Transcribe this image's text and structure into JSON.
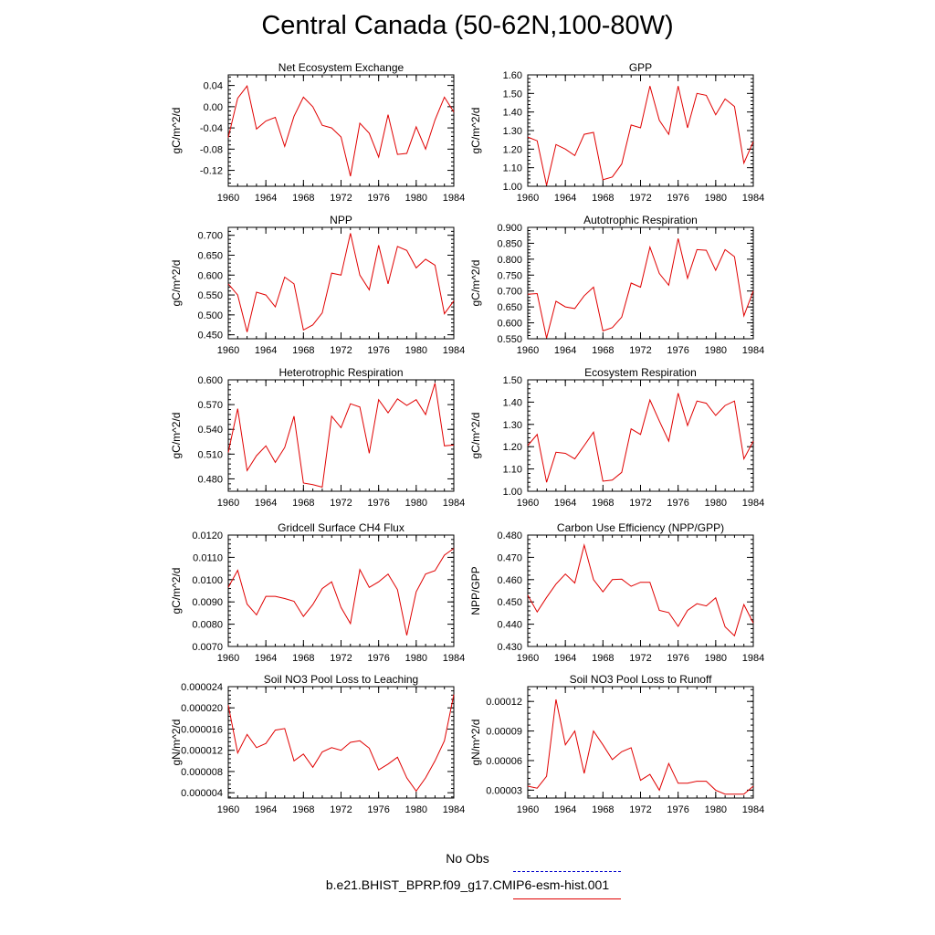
{
  "page": {
    "title": "Central Canada (50-62N,100-80W)"
  },
  "legend": {
    "obs_label": "No Obs",
    "obs_color": "#0000cc",
    "model_label": "b.e21.BHIST_BPRP.f09_g17.CMIP6-esm-hist.001",
    "model_color": "#e00000"
  },
  "chart_data": [
    {
      "type": "line",
      "title": "Net Ecosystem Exchange",
      "ylabel": "gC/m^2/d",
      "x": [
        1960,
        1961,
        1962,
        1963,
        1964,
        1965,
        1966,
        1967,
        1968,
        1969,
        1970,
        1971,
        1972,
        1973,
        1974,
        1975,
        1976,
        1977,
        1978,
        1979,
        1980,
        1981,
        1982,
        1983,
        1984
      ],
      "values": [
        -0.058,
        0.016,
        0.039,
        -0.042,
        -0.027,
        -0.02,
        -0.075,
        -0.018,
        0.018,
        0.0,
        -0.035,
        -0.04,
        -0.057,
        -0.131,
        -0.031,
        -0.05,
        -0.095,
        -0.015,
        -0.09,
        -0.088,
        -0.038,
        -0.08,
        -0.025,
        0.018,
        -0.01
      ],
      "ylim": [
        -0.15,
        0.06
      ],
      "yticks": [
        -0.12,
        -0.08,
        -0.04,
        0.0,
        0.04
      ],
      "ytick_labels": [
        "-0.12",
        "-0.08",
        "-0.04",
        "0.00",
        "0.04"
      ],
      "xticks": [
        "1960",
        "1964",
        "1968",
        "1972",
        "1976",
        "1980",
        "1984"
      ]
    },
    {
      "type": "line",
      "title": "GPP",
      "ylabel": "gC/m^2/d",
      "x": [
        1960,
        1961,
        1962,
        1963,
        1964,
        1965,
        1966,
        1967,
        1968,
        1969,
        1970,
        1971,
        1972,
        1973,
        1974,
        1975,
        1976,
        1977,
        1978,
        1979,
        1980,
        1981,
        1982,
        1983,
        1984
      ],
      "values": [
        1.265,
        1.245,
        1.005,
        1.225,
        1.2,
        1.165,
        1.28,
        1.29,
        1.035,
        1.05,
        1.12,
        1.33,
        1.315,
        1.54,
        1.355,
        1.28,
        1.54,
        1.315,
        1.5,
        1.49,
        1.385,
        1.47,
        1.43,
        1.125,
        1.24
      ],
      "ylim": [
        1.0,
        1.6
      ],
      "yticks": [
        1.0,
        1.1,
        1.2,
        1.3,
        1.4,
        1.5,
        1.6
      ],
      "ytick_labels": [
        "1.00",
        "1.10",
        "1.20",
        "1.30",
        "1.40",
        "1.50",
        "1.60"
      ],
      "xticks": [
        "1960",
        "1964",
        "1968",
        "1972",
        "1976",
        "1980",
        "1984"
      ]
    },
    {
      "type": "line",
      "title": "NPP",
      "ylabel": "gC/m^2/d",
      "x": [
        1960,
        1961,
        1962,
        1963,
        1964,
        1965,
        1966,
        1967,
        1968,
        1969,
        1970,
        1971,
        1972,
        1973,
        1974,
        1975,
        1976,
        1977,
        1978,
        1979,
        1980,
        1981,
        1982,
        1983,
        1984
      ],
      "values": [
        0.578,
        0.55,
        0.457,
        0.557,
        0.55,
        0.52,
        0.595,
        0.578,
        0.462,
        0.475,
        0.505,
        0.605,
        0.6,
        0.705,
        0.6,
        0.563,
        0.675,
        0.578,
        0.672,
        0.662,
        0.618,
        0.64,
        0.625,
        0.503,
        0.535
      ],
      "ylim": [
        0.44,
        0.72
      ],
      "yticks": [
        0.45,
        0.5,
        0.55,
        0.6,
        0.65,
        0.7
      ],
      "ytick_labels": [
        "0.450",
        "0.500",
        "0.550",
        "0.600",
        "0.650",
        "0.700"
      ],
      "xticks": [
        "1960",
        "1964",
        "1968",
        "1972",
        "1976",
        "1980",
        "1984"
      ]
    },
    {
      "type": "line",
      "title": "Autotrophic Respiration",
      "ylabel": "gC/m^2/d",
      "x": [
        1960,
        1961,
        1962,
        1963,
        1964,
        1965,
        1966,
        1967,
        1968,
        1969,
        1970,
        1971,
        1972,
        1973,
        1974,
        1975,
        1976,
        1977,
        1978,
        1979,
        1980,
        1981,
        1982,
        1983,
        1984
      ],
      "values": [
        0.69,
        0.692,
        0.552,
        0.668,
        0.65,
        0.645,
        0.685,
        0.712,
        0.575,
        0.585,
        0.618,
        0.725,
        0.712,
        0.838,
        0.755,
        0.718,
        0.865,
        0.74,
        0.83,
        0.828,
        0.765,
        0.83,
        0.808,
        0.622,
        0.7
      ],
      "ylim": [
        0.55,
        0.9
      ],
      "yticks": [
        0.55,
        0.6,
        0.65,
        0.7,
        0.75,
        0.8,
        0.85,
        0.9
      ],
      "ytick_labels": [
        "0.550",
        "0.600",
        "0.650",
        "0.700",
        "0.750",
        "0.800",
        "0.850",
        "0.900"
      ],
      "xticks": [
        "1960",
        "1964",
        "1968",
        "1972",
        "1976",
        "1980",
        "1984"
      ]
    },
    {
      "type": "line",
      "title": "Heterotrophic Respiration",
      "ylabel": "gC/m^2/d",
      "x": [
        1960,
        1961,
        1962,
        1963,
        1964,
        1965,
        1966,
        1967,
        1968,
        1969,
        1970,
        1971,
        1972,
        1973,
        1974,
        1975,
        1976,
        1977,
        1978,
        1979,
        1980,
        1981,
        1982,
        1983,
        1984
      ],
      "values": [
        0.512,
        0.565,
        0.49,
        0.508,
        0.52,
        0.5,
        0.518,
        0.556,
        0.475,
        0.473,
        0.47,
        0.556,
        0.542,
        0.571,
        0.567,
        0.511,
        0.576,
        0.56,
        0.577,
        0.569,
        0.576,
        0.558,
        0.596,
        0.52,
        0.521
      ],
      "ylim": [
        0.465,
        0.6
      ],
      "yticks": [
        0.48,
        0.51,
        0.54,
        0.57,
        0.6
      ],
      "ytick_labels": [
        "0.480",
        "0.510",
        "0.540",
        "0.570",
        "0.600"
      ],
      "xticks": [
        "1960",
        "1964",
        "1968",
        "1972",
        "1976",
        "1980",
        "1984"
      ]
    },
    {
      "type": "line",
      "title": "Ecosystem Respiration",
      "ylabel": "gC/m^2/d",
      "x": [
        1960,
        1961,
        1962,
        1963,
        1964,
        1965,
        1966,
        1967,
        1968,
        1969,
        1970,
        1971,
        1972,
        1973,
        1974,
        1975,
        1976,
        1977,
        1978,
        1979,
        1980,
        1981,
        1982,
        1983,
        1984
      ],
      "values": [
        1.205,
        1.255,
        1.04,
        1.175,
        1.17,
        1.145,
        1.205,
        1.265,
        1.045,
        1.05,
        1.085,
        1.28,
        1.255,
        1.41,
        1.315,
        1.225,
        1.44,
        1.295,
        1.405,
        1.395,
        1.34,
        1.385,
        1.405,
        1.145,
        1.225
      ],
      "ylim": [
        1.0,
        1.5
      ],
      "yticks": [
        1.0,
        1.1,
        1.2,
        1.3,
        1.4,
        1.5
      ],
      "ytick_labels": [
        "1.00",
        "1.10",
        "1.20",
        "1.30",
        "1.40",
        "1.50"
      ],
      "xticks": [
        "1960",
        "1964",
        "1968",
        "1972",
        "1976",
        "1980",
        "1984"
      ]
    },
    {
      "type": "line",
      "title": "Gridcell Surface CH4 Flux",
      "ylabel": "gC/m^2/d",
      "x": [
        1960,
        1961,
        1962,
        1963,
        1964,
        1965,
        1966,
        1967,
        1968,
        1969,
        1970,
        1971,
        1972,
        1973,
        1974,
        1975,
        1976,
        1977,
        1978,
        1979,
        1980,
        1981,
        1982,
        1983,
        1984
      ],
      "values": [
        0.00965,
        0.01042,
        0.0089,
        0.00842,
        0.00925,
        0.00925,
        0.00915,
        0.00903,
        0.00835,
        0.00888,
        0.0096,
        0.0099,
        0.00875,
        0.00803,
        0.01045,
        0.00965,
        0.0099,
        0.01025,
        0.00955,
        0.0075,
        0.00945,
        0.01025,
        0.0104,
        0.0111,
        0.0114
      ],
      "ylim": [
        0.007,
        0.012
      ],
      "yticks": [
        0.007,
        0.008,
        0.009,
        0.01,
        0.011,
        0.012
      ],
      "ytick_labels": [
        "0.0070",
        "0.0080",
        "0.0090",
        "0.0100",
        "0.0110",
        "0.0120"
      ],
      "xticks": [
        "1960",
        "1964",
        "1968",
        "1972",
        "1976",
        "1980",
        "1984"
      ]
    },
    {
      "type": "line",
      "title": "Carbon Use Efficiency (NPP/GPP)",
      "ylabel": "NPP/GPP",
      "x": [
        1960,
        1961,
        1962,
        1963,
        1964,
        1965,
        1966,
        1967,
        1968,
        1969,
        1970,
        1971,
        1972,
        1973,
        1974,
        1975,
        1976,
        1977,
        1978,
        1979,
        1980,
        1981,
        1982,
        1983,
        1984
      ],
      "values": [
        0.453,
        0.4455,
        0.452,
        0.458,
        0.4625,
        0.4585,
        0.4755,
        0.46,
        0.4545,
        0.46,
        0.4602,
        0.457,
        0.4588,
        0.4588,
        0.4462,
        0.4452,
        0.439,
        0.4462,
        0.4492,
        0.4482,
        0.4518,
        0.4388,
        0.4348,
        0.4488,
        0.4405
      ],
      "ylim": [
        0.43,
        0.48
      ],
      "yticks": [
        0.43,
        0.44,
        0.45,
        0.46,
        0.47,
        0.48
      ],
      "ytick_labels": [
        "0.430",
        "0.440",
        "0.450",
        "0.460",
        "0.470",
        "0.480"
      ],
      "xticks": [
        "1960",
        "1964",
        "1968",
        "1972",
        "1976",
        "1980",
        "1984"
      ]
    },
    {
      "type": "line",
      "title": "Soil NO3 Pool Loss to Leaching",
      "ylabel": "gN/m^2/d",
      "x": [
        1960,
        1961,
        1962,
        1963,
        1964,
        1965,
        1966,
        1967,
        1968,
        1969,
        1970,
        1971,
        1972,
        1973,
        1974,
        1975,
        1976,
        1977,
        1978,
        1979,
        1980,
        1981,
        1982,
        1983,
        1984
      ],
      "values": [
        2.05e-05,
        1.15e-05,
        1.5e-05,
        1.25e-05,
        1.33e-05,
        1.58e-05,
        1.61e-05,
        1e-05,
        1.13e-05,
        8.8e-06,
        1.17e-05,
        1.25e-05,
        1.2e-05,
        1.35e-05,
        1.38e-05,
        1.24e-05,
        8.3e-06,
        9.4e-06,
        1.07e-05,
        6.8e-06,
        4.3e-06,
        6.8e-06,
        1e-05,
        1.38e-05,
        2.25e-05
      ],
      "ylim": [
        3e-06,
        2.4e-05
      ],
      "yticks": [
        4e-06,
        8e-06,
        1.2e-05,
        1.6e-05,
        2e-05,
        2.4e-05
      ],
      "ytick_labels": [
        "0.000004",
        "0.000008",
        "0.000012",
        "0.000016",
        "0.000020",
        "0.000024"
      ],
      "xticks": [
        "1960",
        "1964",
        "1968",
        "1972",
        "1976",
        "1980",
        "1984"
      ]
    },
    {
      "type": "line",
      "title": "Soil NO3 Pool Loss to Runoff",
      "ylabel": "gN/m^2/d",
      "x": [
        1960,
        1961,
        1962,
        1963,
        1964,
        1965,
        1966,
        1967,
        1968,
        1969,
        1970,
        1971,
        1972,
        1973,
        1974,
        1975,
        1976,
        1977,
        1978,
        1979,
        1980,
        1981,
        1982,
        1983,
        1984
      ],
      "values": [
        3.4e-05,
        3.2e-05,
        4.4e-05,
        0.000122,
        7.6e-05,
        9e-05,
        4.7e-05,
        9e-05,
        7.6e-05,
        6.1e-05,
        6.9e-05,
        7.3e-05,
        4e-05,
        4.6e-05,
        3e-05,
        5.7e-05,
        3.7e-05,
        3.7e-05,
        3.9e-05,
        3.9e-05,
        3e-05,
        2.6e-05,
        2.6e-05,
        2.6e-05,
        3.4e-05
      ],
      "ylim": [
        2.2e-05,
        0.000135
      ],
      "yticks": [
        3e-05,
        6e-05,
        9e-05,
        0.00012
      ],
      "ytick_labels": [
        "0.00003",
        "0.00006",
        "0.00009",
        "0.00012"
      ],
      "xticks": [
        "1960",
        "1964",
        "1968",
        "1972",
        "1976",
        "1980",
        "1984"
      ]
    }
  ]
}
